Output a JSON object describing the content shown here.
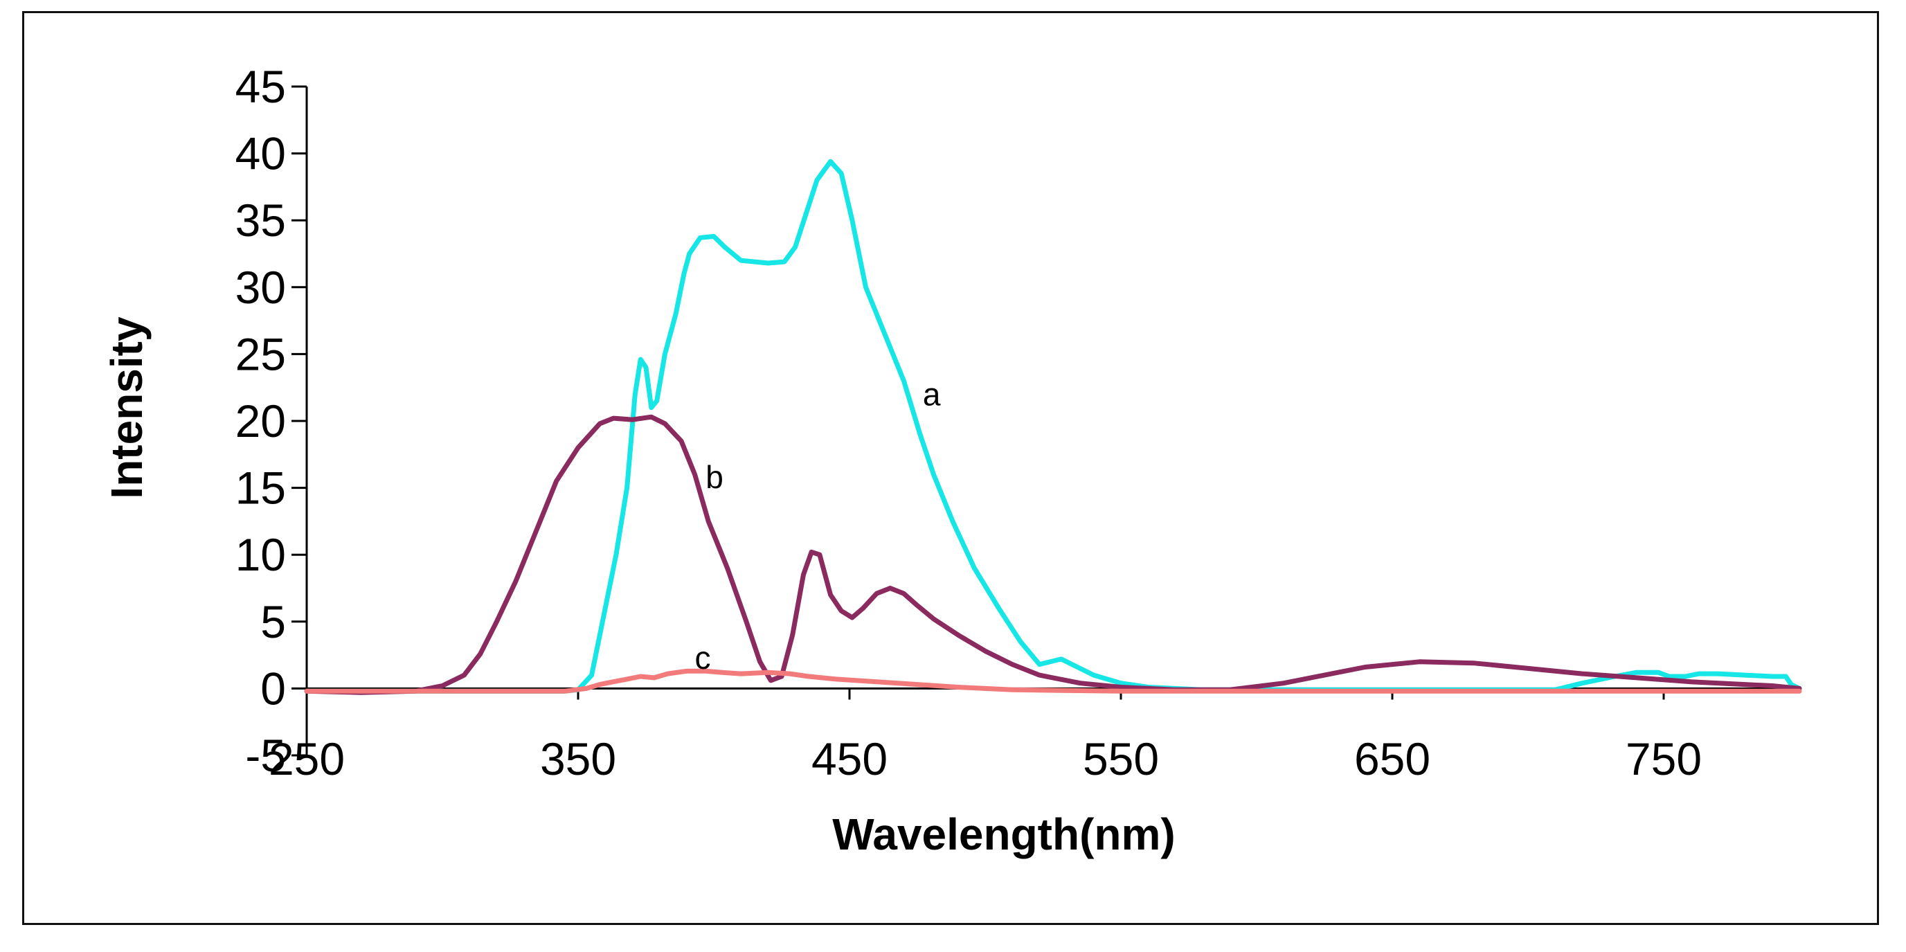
{
  "chart_data": {
    "type": "line",
    "title": "",
    "xlabel": "Wavelength(nm)",
    "ylabel": "Intensity",
    "xlim": [
      250,
      800
    ],
    "ylim": [
      -5,
      45
    ],
    "xticks": [
      250,
      350,
      450,
      550,
      650,
      750
    ],
    "yticks": [
      -5,
      0,
      5,
      10,
      15,
      20,
      25,
      30,
      35,
      40,
      45
    ],
    "grid": false,
    "legend": "none",
    "series": [
      {
        "name": "a",
        "color": "#16e6e6",
        "label_at": [
          477,
          22
        ],
        "points": [
          [
            250,
            -0.2
          ],
          [
            345,
            -0.2
          ],
          [
            350,
            -0.1
          ],
          [
            355,
            1
          ],
          [
            360,
            6
          ],
          [
            364,
            10
          ],
          [
            368,
            15
          ],
          [
            371,
            22
          ],
          [
            373,
            24.6
          ],
          [
            375,
            24
          ],
          [
            377,
            21
          ],
          [
            379,
            21.5
          ],
          [
            382,
            25
          ],
          [
            386,
            28
          ],
          [
            389,
            31
          ],
          [
            391,
            32.5
          ],
          [
            395,
            33.7
          ],
          [
            400,
            33.8
          ],
          [
            404,
            33
          ],
          [
            410,
            32
          ],
          [
            420,
            31.8
          ],
          [
            426,
            31.9
          ],
          [
            430,
            33
          ],
          [
            434,
            35.5
          ],
          [
            438,
            38
          ],
          [
            443,
            39.4
          ],
          [
            447,
            38.5
          ],
          [
            451,
            35
          ],
          [
            456,
            30
          ],
          [
            462,
            27
          ],
          [
            470,
            23
          ],
          [
            476,
            19
          ],
          [
            481,
            16
          ],
          [
            488,
            12.5
          ],
          [
            496,
            9
          ],
          [
            505,
            6
          ],
          [
            513,
            3.5
          ],
          [
            520,
            1.8
          ],
          [
            528,
            2.2
          ],
          [
            532,
            1.8
          ],
          [
            540,
            1
          ],
          [
            550,
            0.4
          ],
          [
            560,
            0.1
          ],
          [
            580,
            -0.1
          ],
          [
            710,
            -0.1
          ],
          [
            720,
            0.4
          ],
          [
            732,
            0.9
          ],
          [
            740,
            1.2
          ],
          [
            748,
            1.2
          ],
          [
            752,
            0.9
          ],
          [
            758,
            0.9
          ],
          [
            763,
            1.1
          ],
          [
            770,
            1.1
          ],
          [
            780,
            1
          ],
          [
            790,
            0.9
          ],
          [
            795,
            0.9
          ],
          [
            797,
            0.3
          ],
          [
            800,
            0
          ]
        ]
      },
      {
        "name": "b",
        "color": "#8b2a5e",
        "label_at": [
          397,
          15.8
        ],
        "points": [
          [
            250,
            -0.2
          ],
          [
            270,
            -0.3
          ],
          [
            290,
            -0.2
          ],
          [
            300,
            0.2
          ],
          [
            308,
            1
          ],
          [
            314,
            2.6
          ],
          [
            320,
            5
          ],
          [
            327,
            8
          ],
          [
            335,
            12
          ],
          [
            342,
            15.5
          ],
          [
            350,
            18
          ],
          [
            358,
            19.8
          ],
          [
            363,
            20.2
          ],
          [
            370,
            20.1
          ],
          [
            377,
            20.3
          ],
          [
            382,
            19.8
          ],
          [
            388,
            18.5
          ],
          [
            393,
            16
          ],
          [
            398,
            12.5
          ],
          [
            405,
            9
          ],
          [
            412,
            5
          ],
          [
            417,
            2
          ],
          [
            421,
            0.6
          ],
          [
            425,
            0.9
          ],
          [
            429,
            4
          ],
          [
            433,
            8.5
          ],
          [
            436,
            10.2
          ],
          [
            439,
            10
          ],
          [
            443,
            7
          ],
          [
            447,
            5.8
          ],
          [
            451,
            5.3
          ],
          [
            455,
            6
          ],
          [
            460,
            7.1
          ],
          [
            465,
            7.5
          ],
          [
            470,
            7.1
          ],
          [
            475,
            6.2
          ],
          [
            481,
            5.2
          ],
          [
            490,
            4
          ],
          [
            500,
            2.8
          ],
          [
            510,
            1.8
          ],
          [
            520,
            1
          ],
          [
            535,
            0.4
          ],
          [
            550,
            0.1
          ],
          [
            570,
            -0.1
          ],
          [
            590,
            -0.1
          ],
          [
            610,
            0.4
          ],
          [
            625,
            1
          ],
          [
            640,
            1.6
          ],
          [
            660,
            2
          ],
          [
            680,
            1.9
          ],
          [
            700,
            1.5
          ],
          [
            720,
            1.1
          ],
          [
            740,
            0.8
          ],
          [
            760,
            0.5
          ],
          [
            780,
            0.3
          ],
          [
            790,
            0.2
          ],
          [
            800,
            0
          ]
        ]
      },
      {
        "name": "c",
        "color": "#f27a7a",
        "label_at": [
          393,
          2.3
        ],
        "points": [
          [
            250,
            -0.2
          ],
          [
            345,
            -0.2
          ],
          [
            353,
            0
          ],
          [
            358,
            0.3
          ],
          [
            363,
            0.5
          ],
          [
            368,
            0.7
          ],
          [
            373,
            0.9
          ],
          [
            378,
            0.8
          ],
          [
            383,
            1.1
          ],
          [
            390,
            1.3
          ],
          [
            397,
            1.3
          ],
          [
            403,
            1.2
          ],
          [
            410,
            1.1
          ],
          [
            420,
            1.2
          ],
          [
            428,
            1.1
          ],
          [
            435,
            0.9
          ],
          [
            445,
            0.7
          ],
          [
            460,
            0.5
          ],
          [
            475,
            0.3
          ],
          [
            490,
            0.1
          ],
          [
            510,
            -0.1
          ],
          [
            550,
            -0.2
          ],
          [
            800,
            -0.2
          ]
        ]
      }
    ]
  }
}
